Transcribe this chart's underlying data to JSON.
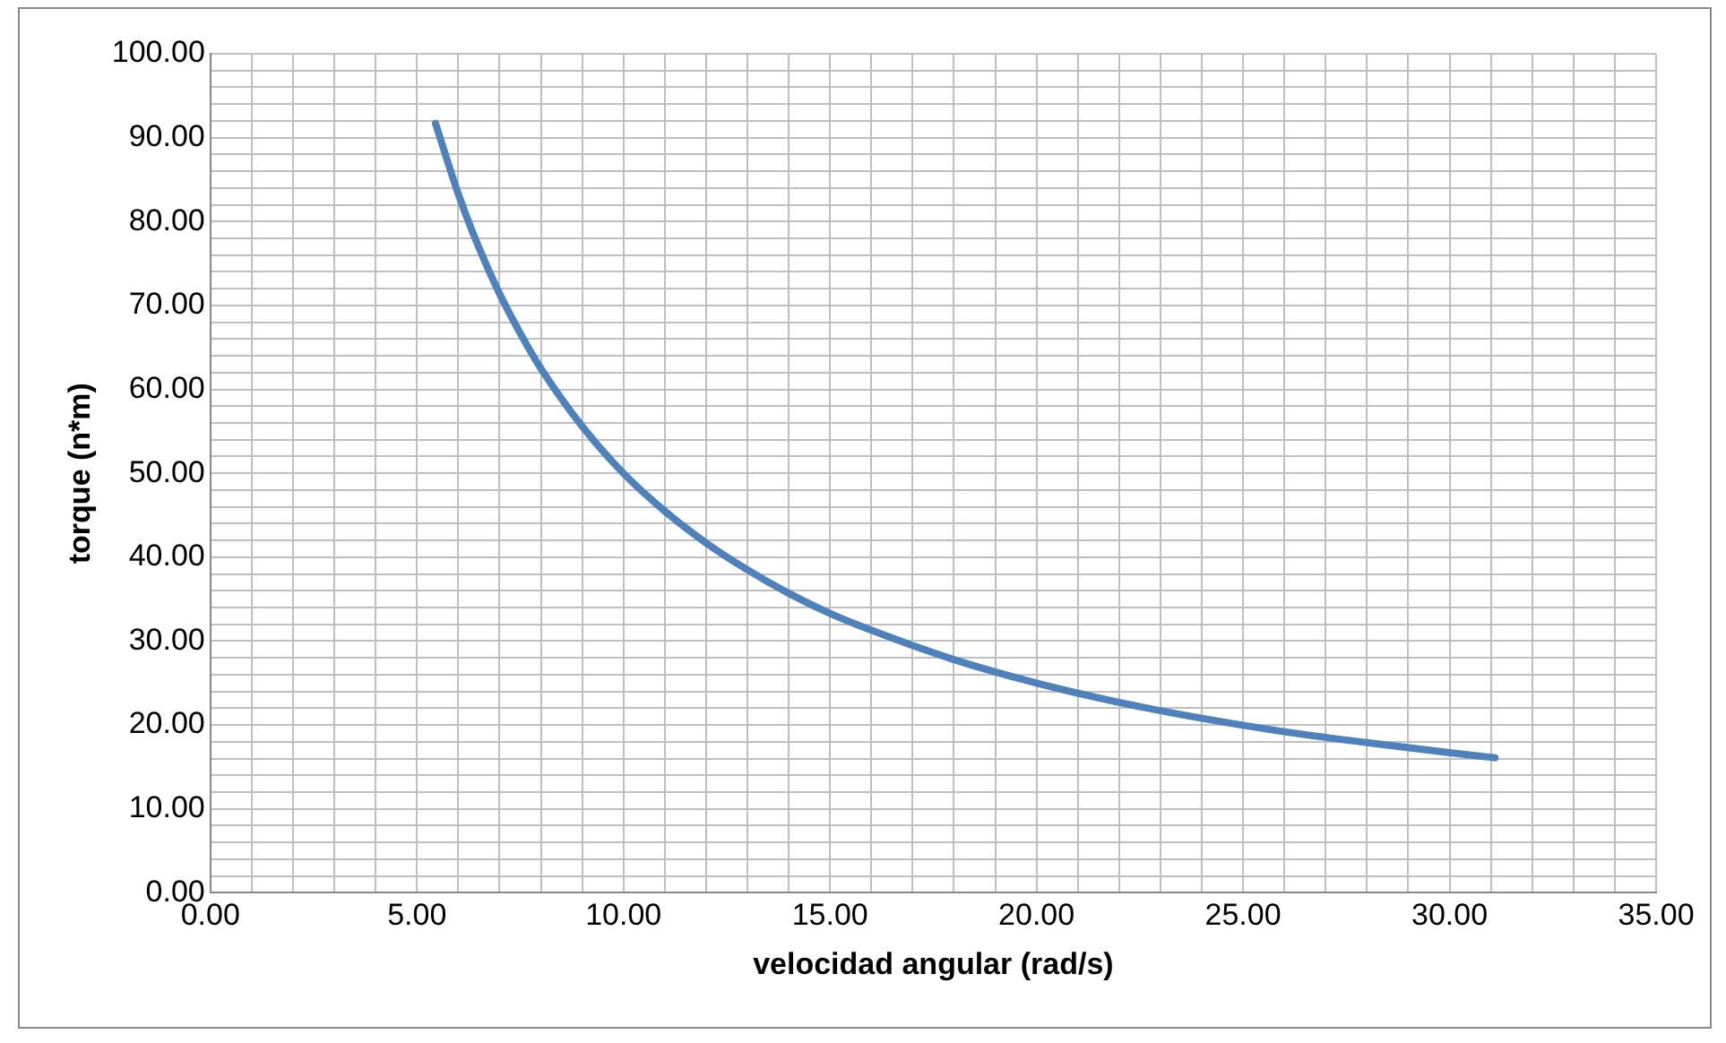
{
  "chart_data": {
    "type": "line",
    "xlabel": "velocidad angular (rad/s)",
    "ylabel": "torque (n*m)",
    "x": [
      5.45,
      6,
      6.5,
      7,
      7.5,
      8,
      9,
      10,
      11,
      12,
      13,
      14,
      15,
      16,
      18,
      20,
      22,
      24,
      26,
      28,
      30,
      31.1
    ],
    "series": [
      {
        "color": "#4f81bd",
        "values": [
          91.7,
          83.3,
          76.9,
          71.4,
          66.7,
          62.5,
          55.6,
          50,
          45.5,
          41.7,
          38.5,
          35.7,
          33.3,
          31.3,
          27.8,
          25,
          22.7,
          20.8,
          19.2,
          17.9,
          16.7,
          16.1
        ]
      }
    ],
    "xlim": [
      0,
      35
    ],
    "ylim": [
      0,
      100
    ],
    "xticks": [
      {
        "value": 0,
        "label": "0.00"
      },
      {
        "value": 1,
        "label": null
      },
      {
        "value": 2,
        "label": null
      },
      {
        "value": 3,
        "label": null
      },
      {
        "value": 4,
        "label": null
      },
      {
        "value": 5,
        "label": "5.00"
      },
      {
        "value": 6,
        "label": null
      },
      {
        "value": 7,
        "label": null
      },
      {
        "value": 8,
        "label": null
      },
      {
        "value": 9,
        "label": null
      },
      {
        "value": 10,
        "label": "10.00"
      },
      {
        "value": 11,
        "label": null
      },
      {
        "value": 12,
        "label": null
      },
      {
        "value": 13,
        "label": null
      },
      {
        "value": 14,
        "label": null
      },
      {
        "value": 15,
        "label": "15.00"
      },
      {
        "value": 16,
        "label": null
      },
      {
        "value": 17,
        "label": null
      },
      {
        "value": 18,
        "label": null
      },
      {
        "value": 19,
        "label": null
      },
      {
        "value": 20,
        "label": "20.00"
      },
      {
        "value": 21,
        "label": null
      },
      {
        "value": 22,
        "label": null
      },
      {
        "value": 23,
        "label": null
      },
      {
        "value": 24,
        "label": null
      },
      {
        "value": 25,
        "label": "25.00"
      },
      {
        "value": 26,
        "label": null
      },
      {
        "value": 27,
        "label": null
      },
      {
        "value": 28,
        "label": null
      },
      {
        "value": 29,
        "label": null
      },
      {
        "value": 30,
        "label": "30.00"
      },
      {
        "value": 31,
        "label": null
      },
      {
        "value": 32,
        "label": null
      },
      {
        "value": 33,
        "label": null
      },
      {
        "value": 34,
        "label": null
      },
      {
        "value": 35,
        "label": "35.00"
      }
    ],
    "yticks": [
      {
        "value": 0,
        "label": "0.00"
      },
      {
        "value": 2,
        "label": null
      },
      {
        "value": 4,
        "label": null
      },
      {
        "value": 6,
        "label": null
      },
      {
        "value": 8,
        "label": null
      },
      {
        "value": 10,
        "label": "10.00"
      },
      {
        "value": 12,
        "label": null
      },
      {
        "value": 14,
        "label": null
      },
      {
        "value": 16,
        "label": null
      },
      {
        "value": 18,
        "label": null
      },
      {
        "value": 20,
        "label": "20.00"
      },
      {
        "value": 22,
        "label": null
      },
      {
        "value": 24,
        "label": null
      },
      {
        "value": 26,
        "label": null
      },
      {
        "value": 28,
        "label": null
      },
      {
        "value": 30,
        "label": "30.00"
      },
      {
        "value": 32,
        "label": null
      },
      {
        "value": 34,
        "label": null
      },
      {
        "value": 36,
        "label": null
      },
      {
        "value": 38,
        "label": null
      },
      {
        "value": 40,
        "label": "40.00"
      },
      {
        "value": 42,
        "label": null
      },
      {
        "value": 44,
        "label": null
      },
      {
        "value": 46,
        "label": null
      },
      {
        "value": 48,
        "label": null
      },
      {
        "value": 50,
        "label": "50.00"
      },
      {
        "value": 52,
        "label": null
      },
      {
        "value": 54,
        "label": null
      },
      {
        "value": 56,
        "label": null
      },
      {
        "value": 58,
        "label": null
      },
      {
        "value": 60,
        "label": "60.00"
      },
      {
        "value": 62,
        "label": null
      },
      {
        "value": 64,
        "label": null
      },
      {
        "value": 66,
        "label": null
      },
      {
        "value": 68,
        "label": null
      },
      {
        "value": 70,
        "label": "70.00"
      },
      {
        "value": 72,
        "label": null
      },
      {
        "value": 74,
        "label": null
      },
      {
        "value": 76,
        "label": null
      },
      {
        "value": 78,
        "label": null
      },
      {
        "value": 80,
        "label": "80.00"
      },
      {
        "value": 82,
        "label": null
      },
      {
        "value": 84,
        "label": null
      },
      {
        "value": 86,
        "label": null
      },
      {
        "value": 88,
        "label": null
      },
      {
        "value": 90,
        "label": "90.00"
      },
      {
        "value": 92,
        "label": null
      },
      {
        "value": 94,
        "label": null
      },
      {
        "value": 96,
        "label": null
      },
      {
        "value": 98,
        "label": null
      },
      {
        "value": 100,
        "label": "100.00"
      }
    ],
    "grid": true
  }
}
